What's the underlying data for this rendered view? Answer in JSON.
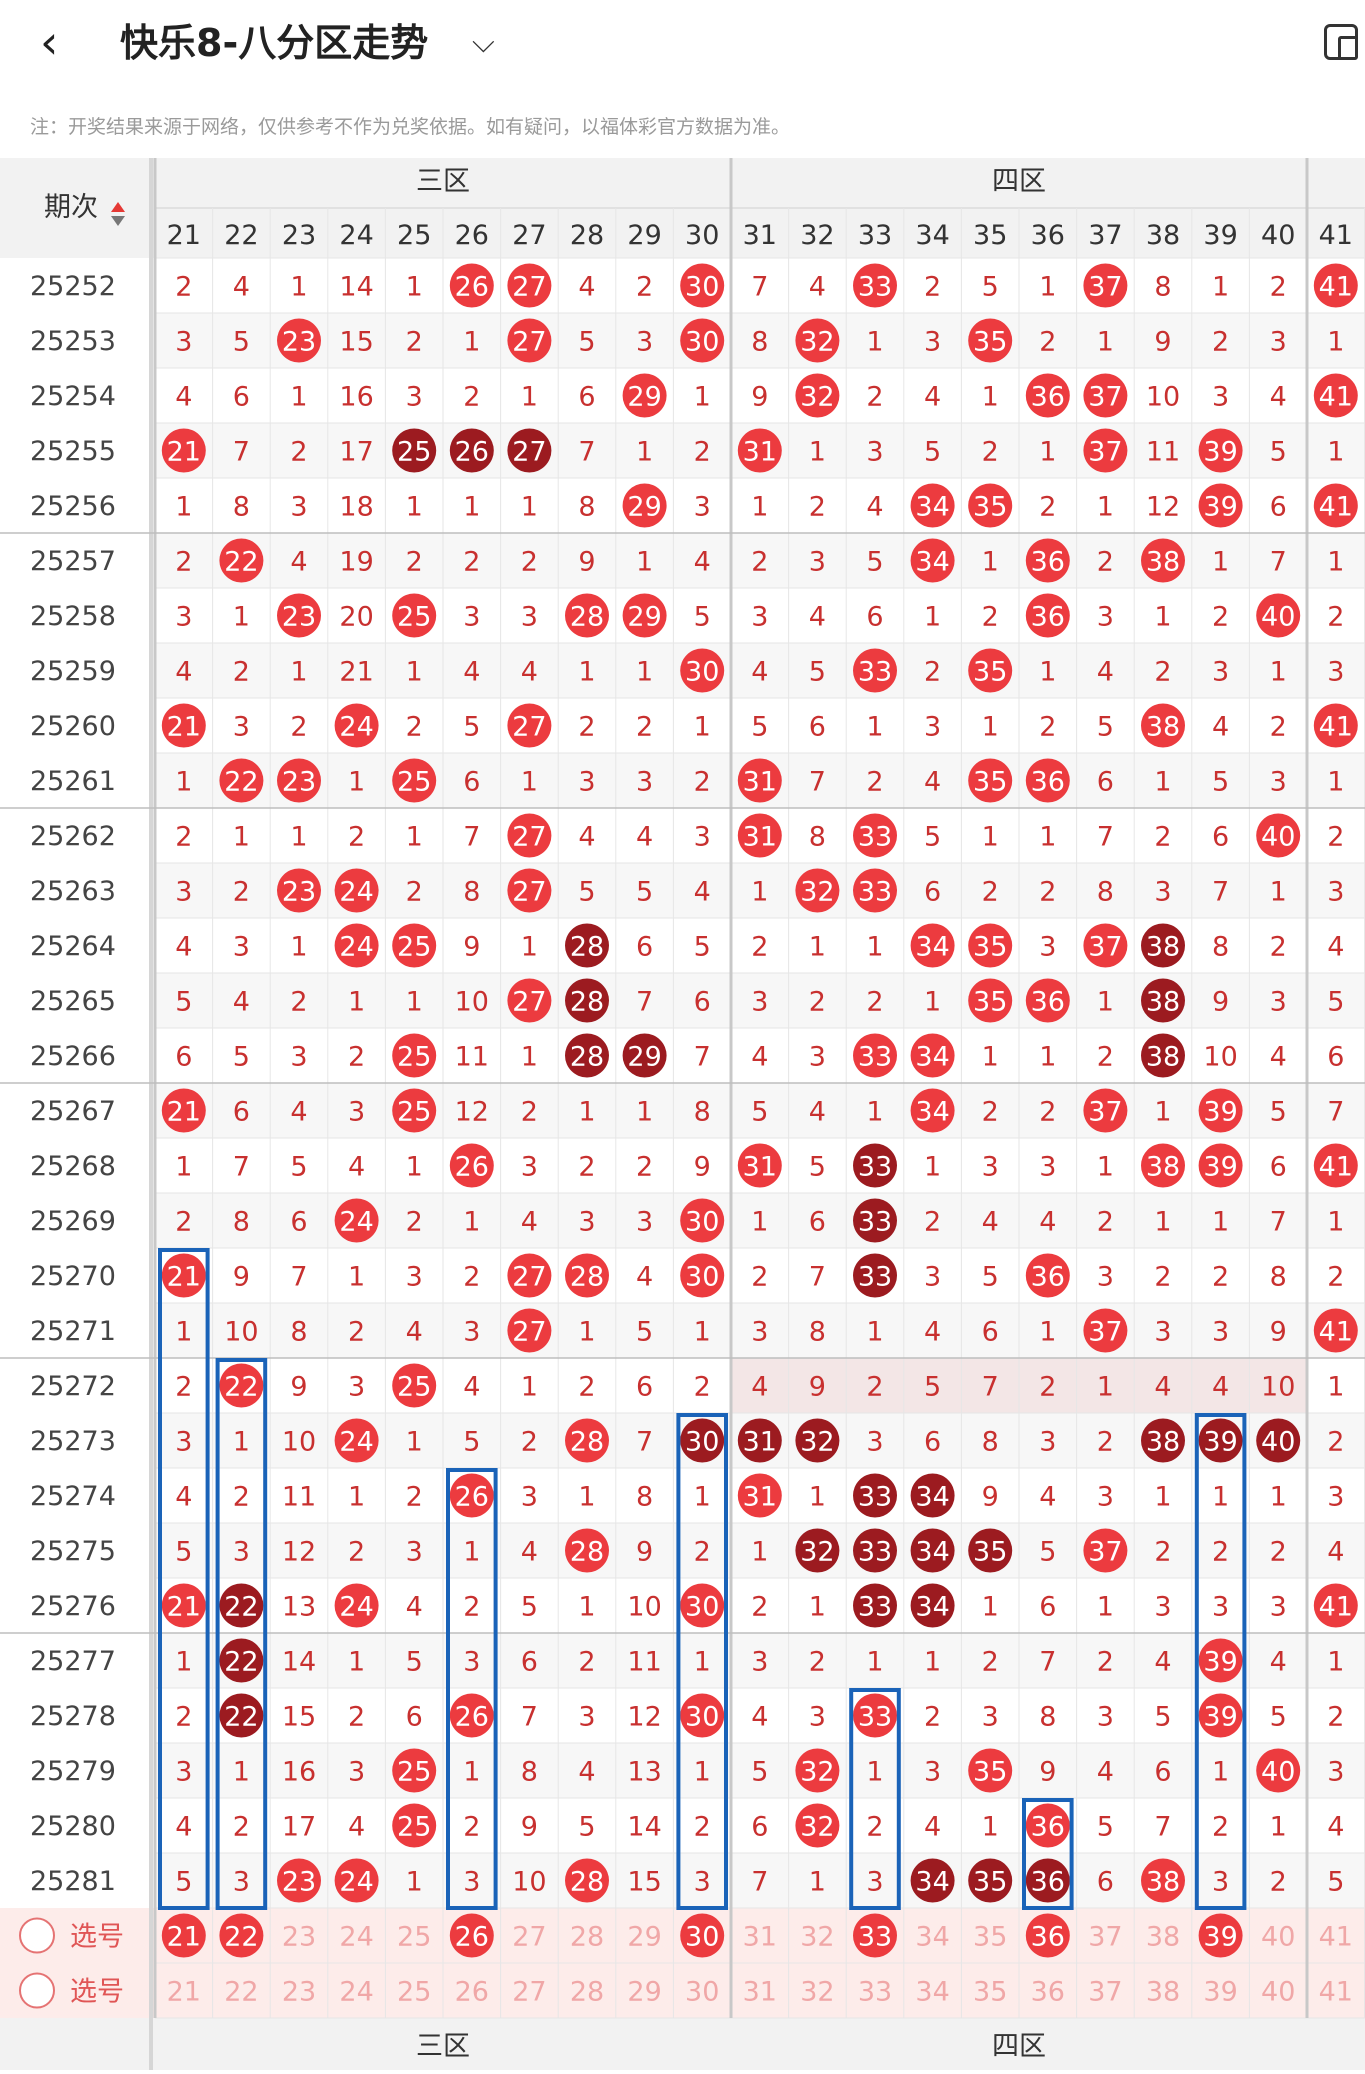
{
  "header": {
    "back_icon": "chevron-left-icon",
    "title": "快乐8-八分区走势",
    "dropdown_icon": "chevron-down-icon",
    "device_icon": "device-switch-icon"
  },
  "note": "注：开奖结果来源于网络，仅供参考不作为兑奖依据。如有疑问，以福体彩官方数据为准。",
  "table": {
    "corner_label": "期次",
    "sort_icon": "sort-icon",
    "zones": [
      {
        "label": "三区",
        "cols": 10
      },
      {
        "label": "四区",
        "cols": 10
      }
    ],
    "columns": [
      21,
      22,
      23,
      24,
      25,
      26,
      27,
      28,
      29,
      30,
      31,
      32,
      33,
      34,
      35,
      36,
      37,
      38,
      39,
      40,
      41
    ],
    "periods": [
      "25252",
      "25253",
      "25254",
      "25255",
      "25256",
      "25257",
      "25258",
      "25259",
      "25260",
      "25261",
      "25262",
      "25263",
      "25264",
      "25265",
      "25266",
      "25267",
      "25268",
      "25269",
      "25270",
      "25271",
      "25272",
      "25273",
      "25274",
      "25275",
      "25276",
      "25277",
      "25278",
      "25279",
      "25280",
      "25281"
    ],
    "rows": [
      [
        2,
        4,
        1,
        14,
        1,
        "H",
        "H",
        4,
        2,
        "H",
        7,
        4,
        "H",
        2,
        5,
        1,
        "H",
        8,
        1,
        2,
        "H"
      ],
      [
        3,
        5,
        "H",
        15,
        2,
        1,
        "H",
        5,
        3,
        "H",
        8,
        "H",
        1,
        3,
        "H",
        2,
        1,
        9,
        2,
        3,
        1
      ],
      [
        4,
        6,
        1,
        16,
        3,
        2,
        1,
        6,
        "H",
        1,
        9,
        "H",
        2,
        4,
        1,
        "H",
        "H",
        10,
        3,
        4,
        "H"
      ],
      [
        "H",
        7,
        2,
        17,
        "D",
        "D",
        "D",
        7,
        1,
        2,
        "H",
        1,
        3,
        5,
        2,
        1,
        "H",
        11,
        "H",
        5,
        1
      ],
      [
        1,
        8,
        3,
        18,
        1,
        1,
        1,
        8,
        "H",
        3,
        1,
        2,
        4,
        "H",
        "H",
        2,
        1,
        12,
        "H",
        6,
        "H"
      ],
      [
        2,
        "H",
        4,
        19,
        2,
        2,
        2,
        9,
        1,
        4,
        2,
        3,
        5,
        "H",
        1,
        "H",
        2,
        "H",
        1,
        7,
        1
      ],
      [
        3,
        1,
        "H",
        20,
        "H",
        3,
        3,
        "H",
        "H",
        5,
        3,
        4,
        6,
        1,
        2,
        "H",
        3,
        1,
        2,
        "H",
        2
      ],
      [
        4,
        2,
        1,
        21,
        1,
        4,
        4,
        1,
        1,
        "H",
        4,
        5,
        "H",
        2,
        "H",
        1,
        4,
        2,
        3,
        1,
        3
      ],
      [
        "H",
        3,
        2,
        "H",
        2,
        5,
        "H",
        2,
        2,
        1,
        5,
        6,
        1,
        3,
        1,
        2,
        5,
        "H",
        4,
        2,
        "H"
      ],
      [
        1,
        "H",
        "H",
        1,
        "H",
        6,
        1,
        3,
        3,
        2,
        "H",
        7,
        2,
        4,
        "H",
        "H",
        6,
        1,
        5,
        3,
        1
      ],
      [
        2,
        1,
        1,
        2,
        1,
        7,
        "H",
        4,
        4,
        3,
        "H",
        8,
        "H",
        5,
        1,
        1,
        7,
        2,
        6,
        "H",
        2
      ],
      [
        3,
        2,
        "H",
        "H",
        2,
        8,
        "H",
        5,
        5,
        4,
        1,
        "H",
        "H",
        6,
        2,
        2,
        8,
        3,
        7,
        1,
        3
      ],
      [
        4,
        3,
        1,
        "H",
        "H",
        9,
        1,
        "D",
        6,
        5,
        2,
        1,
        1,
        "H",
        "H",
        3,
        "H",
        "D",
        8,
        2,
        4
      ],
      [
        5,
        4,
        2,
        1,
        1,
        10,
        "H",
        "D",
        7,
        6,
        3,
        2,
        2,
        1,
        "H",
        "H",
        1,
        "D",
        9,
        3,
        5
      ],
      [
        6,
        5,
        3,
        2,
        "H",
        11,
        1,
        "D",
        "D",
        7,
        4,
        3,
        "H",
        "H",
        1,
        1,
        2,
        "D",
        10,
        4,
        6
      ],
      [
        "H",
        6,
        4,
        3,
        "H",
        12,
        2,
        1,
        1,
        8,
        5,
        4,
        1,
        "H",
        2,
        2,
        "H",
        1,
        "H",
        5,
        7
      ],
      [
        1,
        7,
        5,
        4,
        1,
        "H",
        3,
        2,
        2,
        9,
        "H",
        5,
        "D",
        1,
        3,
        3,
        1,
        "H",
        "H",
        6,
        "H"
      ],
      [
        2,
        8,
        6,
        "H",
        2,
        1,
        4,
        3,
        3,
        "H",
        1,
        6,
        "D",
        2,
        4,
        4,
        2,
        1,
        1,
        7,
        1
      ],
      [
        "H",
        9,
        7,
        1,
        3,
        2,
        "H",
        "H",
        4,
        "H",
        2,
        7,
        "D",
        3,
        5,
        "H",
        3,
        2,
        2,
        8,
        2
      ],
      [
        1,
        10,
        8,
        2,
        4,
        3,
        "H",
        1,
        5,
        1,
        3,
        8,
        1,
        4,
        6,
        1,
        "H",
        3,
        3,
        9,
        "H"
      ],
      [
        2,
        "H",
        9,
        3,
        "H",
        4,
        1,
        2,
        6,
        2,
        4,
        9,
        2,
        5,
        7,
        2,
        1,
        4,
        4,
        10,
        1
      ],
      [
        3,
        1,
        10,
        "H",
        1,
        5,
        2,
        "H",
        7,
        "D",
        "D",
        "D",
        3,
        6,
        8,
        3,
        2,
        "D",
        "D",
        "D",
        2
      ],
      [
        4,
        2,
        11,
        1,
        2,
        "H",
        3,
        1,
        8,
        1,
        "H",
        1,
        "D",
        "D",
        9,
        4,
        3,
        1,
        1,
        1,
        3
      ],
      [
        5,
        3,
        12,
        2,
        3,
        1,
        4,
        "H",
        9,
        2,
        1,
        "D",
        "D",
        "D",
        "D",
        5,
        "H",
        2,
        2,
        2,
        4
      ],
      [
        "H",
        "D",
        13,
        "H",
        4,
        2,
        5,
        1,
        10,
        "H",
        2,
        1,
        "D",
        "D",
        1,
        6,
        1,
        3,
        3,
        3,
        "H"
      ],
      [
        1,
        "D",
        14,
        1,
        5,
        3,
        6,
        2,
        11,
        1,
        3,
        2,
        1,
        1,
        2,
        7,
        2,
        4,
        "H",
        4,
        1
      ],
      [
        2,
        "D",
        15,
        2,
        6,
        "H",
        7,
        3,
        12,
        "H",
        4,
        3,
        "H",
        2,
        3,
        8,
        3,
        5,
        "H",
        5,
        2
      ],
      [
        3,
        1,
        16,
        3,
        "H",
        1,
        8,
        4,
        13,
        1,
        5,
        "H",
        1,
        3,
        "H",
        9,
        4,
        6,
        1,
        "H",
        3
      ],
      [
        4,
        2,
        17,
        4,
        "H",
        2,
        9,
        5,
        14,
        2,
        6,
        "H",
        2,
        4,
        1,
        "H",
        5,
        7,
        2,
        1,
        4
      ],
      [
        5,
        3,
        "H",
        "H",
        1,
        3,
        10,
        "H",
        15,
        3,
        7,
        1,
        3,
        "D",
        "D",
        "D",
        6,
        "H",
        3,
        2,
        5
      ]
    ],
    "select_rows": [
      {
        "label": "选号",
        "selected": [
          21,
          22,
          26,
          30,
          33,
          36,
          39
        ],
        "radio_icon": "radio-icon"
      },
      {
        "label": "选号",
        "selected": [],
        "radio_icon": "radio-icon"
      }
    ]
  },
  "colors": {
    "hit": "#ec3b3f",
    "deep": "#9c1b20",
    "miss_text": "#c8302f",
    "box": "#1a63b8",
    "select_bg": "#fdecea"
  }
}
